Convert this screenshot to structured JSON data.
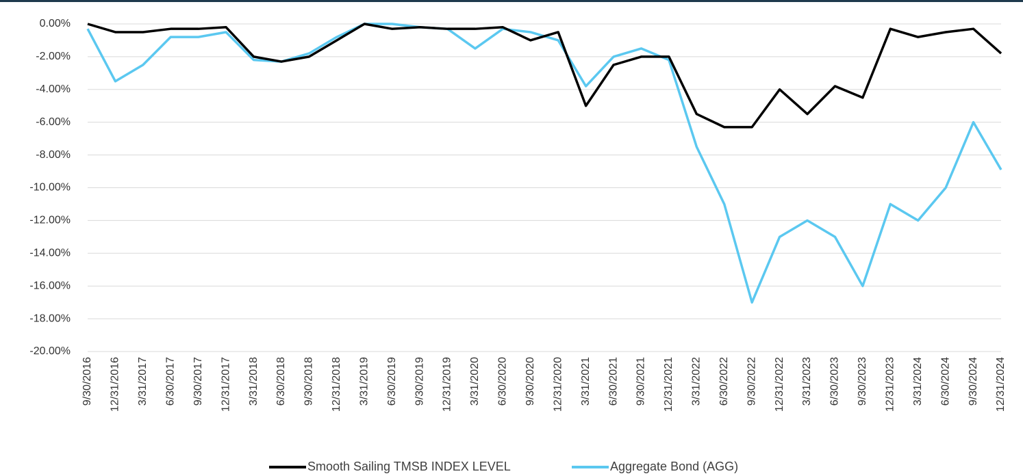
{
  "chart_data": {
    "type": "line",
    "categories": [
      "9/30/2016",
      "12/31/2016",
      "3/31/2017",
      "6/30/2017",
      "9/30/2017",
      "12/31/2017",
      "3/31/2018",
      "6/30/2018",
      "9/30/2018",
      "12/31/2018",
      "3/31/2019",
      "6/30/2019",
      "9/30/2019",
      "12/31/2019",
      "3/31/2020",
      "6/30/2020",
      "9/30/2020",
      "12/31/2020",
      "3/31/2021",
      "6/30/2021",
      "9/30/2021",
      "12/31/2021",
      "3/31/2022",
      "6/30/2022",
      "9/30/2022",
      "12/31/2022",
      "3/31/2023",
      "6/30/2023",
      "9/30/2023",
      "12/31/2023",
      "3/31/2024",
      "6/30/2024",
      "9/30/2024",
      "12/31/2024"
    ],
    "series": [
      {
        "name": "Smooth Sailing TMSB INDEX LEVEL",
        "color": "#000000",
        "values": [
          0,
          -0.5,
          -0.5,
          -0.3,
          -0.3,
          -0.2,
          -2.0,
          -2.3,
          -2.0,
          -1.0,
          0,
          -0.3,
          -0.2,
          -0.3,
          -0.3,
          -0.2,
          -1.0,
          -0.5,
          -5.0,
          -2.5,
          -2.0,
          -2.0,
          -5.5,
          -6.3,
          -6.3,
          -4.0,
          -5.5,
          -3.8,
          -4.5,
          -0.3,
          -0.8,
          -0.5,
          -0.3,
          -1.8
        ]
      },
      {
        "name": "Aggregate Bond (AGG)",
        "color": "#5bc8f0",
        "values": [
          -0.3,
          -3.5,
          -2.5,
          -0.8,
          -0.8,
          -0.5,
          -2.2,
          -2.3,
          -1.8,
          -0.8,
          0,
          0,
          -0.2,
          -0.3,
          -1.5,
          -0.3,
          -0.5,
          -1.0,
          -3.8,
          -2.0,
          -1.5,
          -2.2,
          -7.5,
          -11.0,
          -17.0,
          -13.0,
          -12.0,
          -13.0,
          -16.0,
          -11.0,
          -12.0,
          -10.0,
          -6.0,
          -8.9
        ]
      }
    ],
    "ylim": [
      -20,
      0
    ],
    "yticks": [
      {
        "value": 0,
        "label": "0.00%"
      },
      {
        "value": -2,
        "label": "-2.00%"
      },
      {
        "value": -4,
        "label": "-4.00%"
      },
      {
        "value": -6,
        "label": "-6.00%"
      },
      {
        "value": -8,
        "label": "-8.00%"
      },
      {
        "value": -10,
        "label": "-10.00%"
      },
      {
        "value": -12,
        "label": "-12.00%"
      },
      {
        "value": -14,
        "label": "-14.00%"
      },
      {
        "value": -16,
        "label": "-16.00%"
      },
      {
        "value": -18,
        "label": "-18.00%"
      },
      {
        "value": -20,
        "label": "-20.00%"
      }
    ],
    "grid": true,
    "legend": "bottom"
  }
}
